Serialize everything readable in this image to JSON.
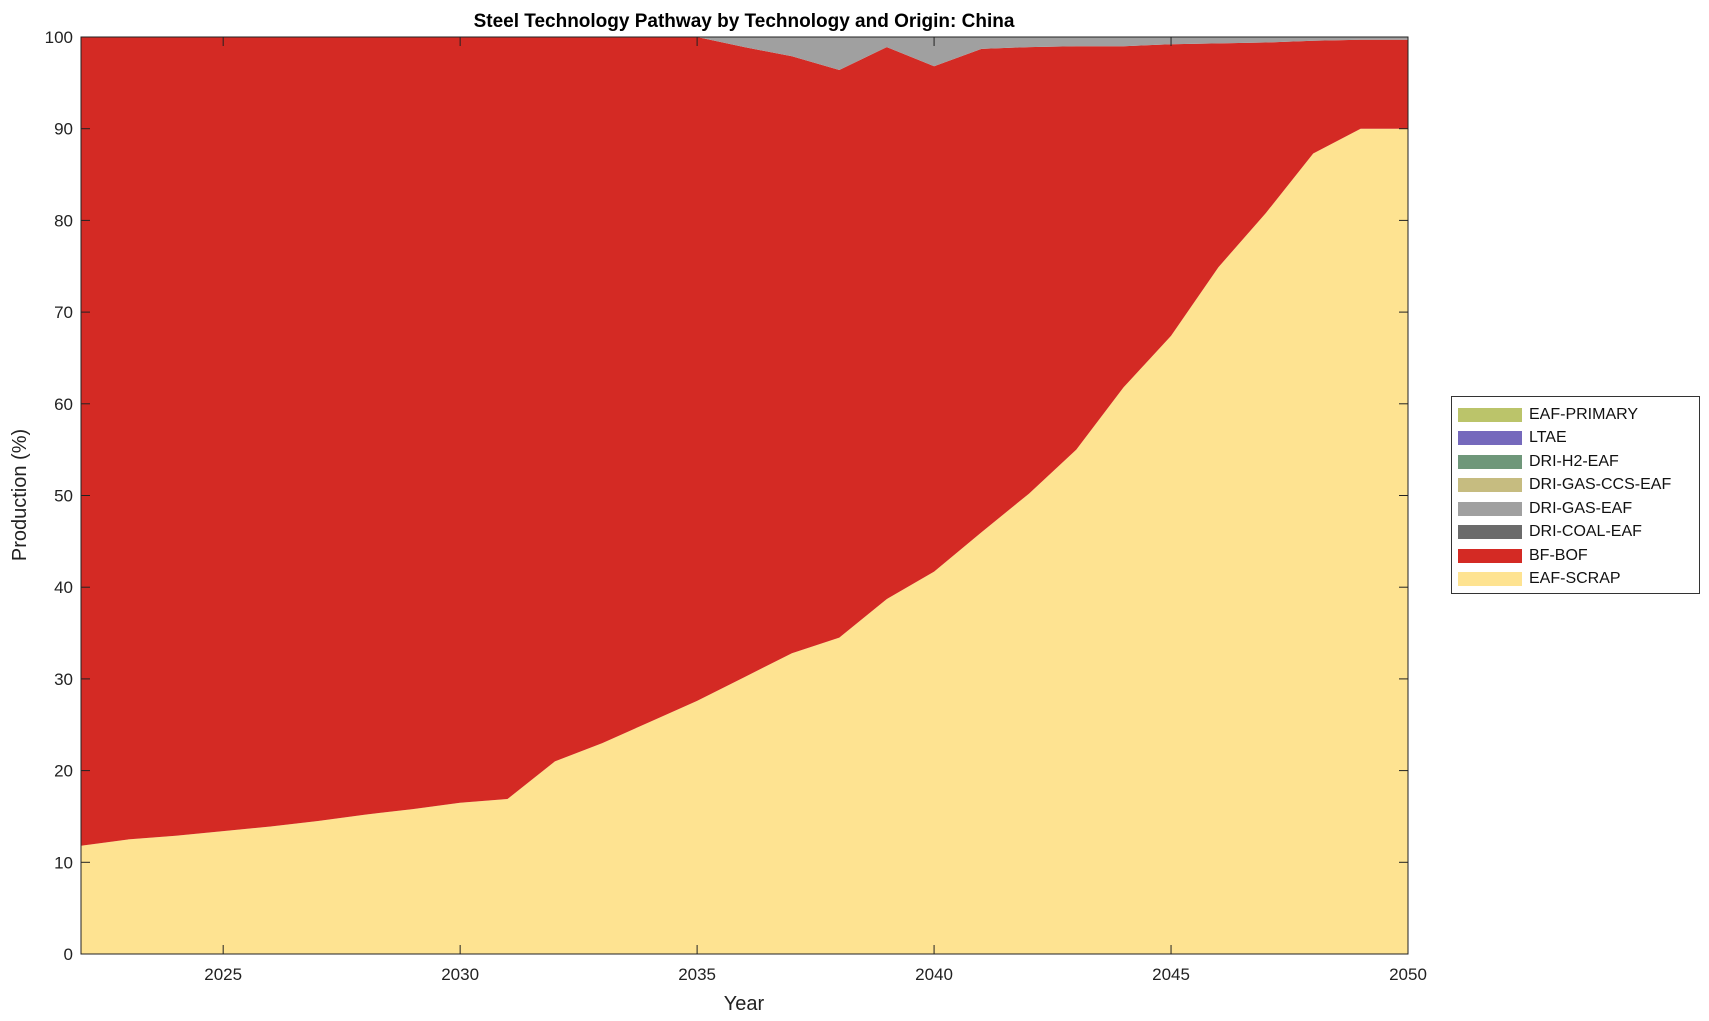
{
  "chart_data": {
    "type": "area",
    "stacked": true,
    "title": "Steel Technology Pathway by Technology and Origin: China",
    "xlabel": "Year",
    "ylabel": "Production (%)",
    "xlim": [
      2022,
      2050
    ],
    "ylim": [
      0,
      100
    ],
    "xticks": [
      2025,
      2030,
      2035,
      2040,
      2045,
      2050
    ],
    "yticks": [
      0,
      10,
      20,
      30,
      40,
      50,
      60,
      70,
      80,
      90,
      100
    ],
    "grid": false,
    "legend_position": "right",
    "x": [
      2022,
      2023,
      2024,
      2025,
      2026,
      2027,
      2028,
      2029,
      2030,
      2031,
      2032,
      2033,
      2034,
      2035,
      2036,
      2037,
      2038,
      2039,
      2040,
      2041,
      2042,
      2043,
      2044,
      2045,
      2046,
      2047,
      2048,
      2049,
      2050
    ],
    "series": [
      {
        "name": "EAF-SCRAP",
        "color": "#FEE391",
        "values": [
          11.8,
          12.5,
          12.9,
          13.4,
          13.9,
          14.5,
          15.2,
          15.8,
          16.5,
          16.9,
          21.0,
          23.0,
          25.3,
          27.6,
          30.2,
          32.8,
          34.5,
          38.7,
          41.7,
          46.0,
          50.2,
          55.0,
          61.8,
          67.4,
          74.9,
          80.8,
          87.3,
          90.0,
          90.0
        ]
      },
      {
        "name": "BF-BOF",
        "color": "#D42A24",
        "values": [
          88.2,
          87.5,
          87.1,
          86.6,
          86.1,
          85.5,
          84.8,
          84.2,
          83.5,
          83.1,
          79.0,
          77.0,
          74.7,
          72.4,
          68.7,
          65.1,
          61.9,
          60.2,
          55.1,
          52.7,
          48.7,
          44.0,
          37.2,
          31.8,
          24.4,
          18.6,
          12.3,
          9.7,
          9.7
        ]
      },
      {
        "name": "DRI-COAL-EAF",
        "color": "#6B6B6B",
        "values": [
          0,
          0,
          0,
          0,
          0,
          0,
          0,
          0,
          0,
          0,
          0,
          0,
          0,
          0,
          0,
          0,
          0,
          0,
          0,
          0,
          0,
          0,
          0,
          0,
          0,
          0,
          0,
          0,
          0
        ]
      },
      {
        "name": "DRI-GAS-EAF",
        "color": "#A0A0A0",
        "values": [
          0,
          0,
          0,
          0,
          0,
          0,
          0,
          0,
          0,
          0,
          0,
          0,
          0,
          0,
          1.1,
          2.1,
          3.6,
          1.1,
          3.2,
          1.3,
          1.1,
          1.0,
          1.0,
          0.8,
          0.7,
          0.6,
          0.4,
          0.3,
          0.3
        ]
      },
      {
        "name": "DRI-GAS-CCS-EAF",
        "color": "#C6BC80",
        "values": [
          0,
          0,
          0,
          0,
          0,
          0,
          0,
          0,
          0,
          0,
          0,
          0,
          0,
          0,
          0,
          0,
          0,
          0,
          0,
          0,
          0,
          0,
          0,
          0,
          0,
          0,
          0,
          0,
          0
        ]
      },
      {
        "name": "DRI-H2-EAF",
        "color": "#6F977A",
        "values": [
          0,
          0,
          0,
          0,
          0,
          0,
          0,
          0,
          0,
          0,
          0,
          0,
          0,
          0,
          0,
          0,
          0,
          0,
          0,
          0,
          0,
          0,
          0,
          0,
          0,
          0,
          0,
          0,
          0
        ]
      },
      {
        "name": "LTAE",
        "color": "#7569BC",
        "values": [
          0,
          0,
          0,
          0,
          0,
          0,
          0,
          0,
          0,
          0,
          0,
          0,
          0,
          0,
          0,
          0,
          0,
          0,
          0,
          0,
          0,
          0,
          0,
          0,
          0,
          0,
          0,
          0,
          0
        ]
      },
      {
        "name": "EAF-PRIMARY",
        "color": "#BBC46A",
        "values": [
          0,
          0,
          0,
          0,
          0,
          0,
          0,
          0,
          0,
          0,
          0,
          0,
          0,
          0,
          0,
          0,
          0,
          0,
          0,
          0,
          0,
          0,
          0,
          0,
          0,
          0,
          0,
          0,
          0
        ]
      }
    ]
  }
}
